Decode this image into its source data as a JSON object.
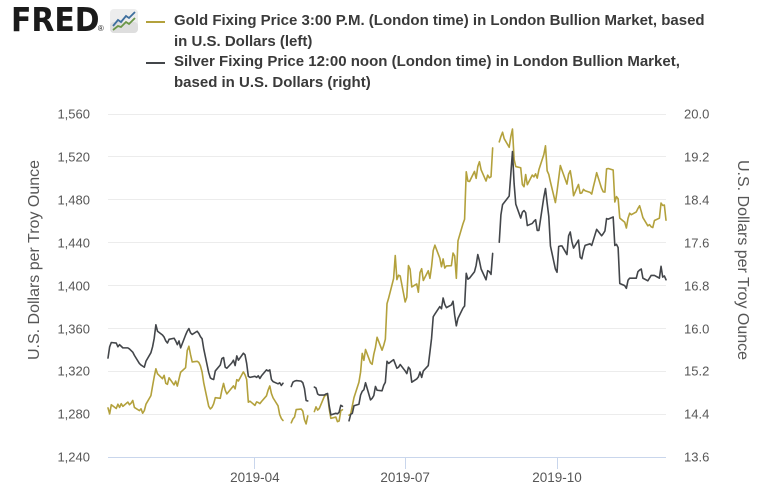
{
  "brand": {
    "logo_text": "FRED",
    "registered_mark": "®",
    "icon_line_top_color": "#3e6f9e",
    "icon_line_bottom_color": "#6a9646"
  },
  "legend": {
    "entries": [
      {
        "series": "gold",
        "color": "#b3a13c",
        "label": "Gold Fixing Price 3:00 P.M. (London time) in London Bullion Market, based in U.S. Dollars (left)",
        "label_line1": "Gold Fixing Price 3:00 P.M. (London time) in London Bullion Market, based",
        "label_line2": "in U.S. Dollars (left)"
      },
      {
        "series": "silver",
        "color": "#43464a",
        "label": "Silver Fixing Price 12:00 noon (London time) in London Bullion Market, based in U.S. Dollars (right)",
        "label_line1": "Silver Fixing Price 12:00 noon (London time) in London Bullion Market,",
        "label_line2": "based in U.S. Dollars (right)"
      }
    ]
  },
  "chart_data": {
    "type": "line",
    "title": "",
    "left_axis": {
      "title": "U.S. Dollars per Troy Ounce",
      "min": 1240,
      "max": 1560,
      "ticks": [
        1240,
        1280,
        1320,
        1360,
        1400,
        1440,
        1480,
        1520,
        1560
      ],
      "tick_labels": [
        "1,240",
        "1,280",
        "1,320",
        "1,360",
        "1,400",
        "1,440",
        "1,480",
        "1,520",
        "1,560"
      ]
    },
    "right_axis": {
      "title": "U.S. Dollars per Troy Ounce",
      "min": 13.6,
      "max": 20.0,
      "ticks": [
        13.6,
        14.4,
        15.2,
        16.0,
        16.8,
        17.6,
        18.4,
        19.2,
        20.0
      ],
      "tick_labels": [
        "13.6",
        "14.4",
        "15.2",
        "16.0",
        "16.8",
        "17.6",
        "18.4",
        "19.2",
        "20.0"
      ]
    },
    "x_axis": {
      "start_date": "2019-01-02",
      "end_date": "2019-12-06",
      "ticks": [
        "2019-04-01",
        "2019-07-01",
        "2019-10-01"
      ],
      "tick_labels": [
        "2019-04",
        "2019-07",
        "2019-10"
      ]
    },
    "grid": true,
    "legend_position": "top",
    "dates": [
      "2019-01-02",
      "2019-01-03",
      "2019-01-04",
      "2019-01-07",
      "2019-01-08",
      "2019-01-09",
      "2019-01-10",
      "2019-01-11",
      "2019-01-14",
      "2019-01-15",
      "2019-01-16",
      "2019-01-17",
      "2019-01-18",
      "2019-01-21",
      "2019-01-22",
      "2019-01-23",
      "2019-01-24",
      "2019-01-25",
      "2019-01-28",
      "2019-01-29",
      "2019-01-30",
      "2019-01-31",
      "2019-02-01",
      "2019-02-04",
      "2019-02-05",
      "2019-02-06",
      "2019-02-07",
      "2019-02-08",
      "2019-02-11",
      "2019-02-12",
      "2019-02-13",
      "2019-02-14",
      "2019-02-15",
      "2019-02-18",
      "2019-02-19",
      "2019-02-20",
      "2019-02-21",
      "2019-02-22",
      "2019-02-25",
      "2019-02-26",
      "2019-02-27",
      "2019-02-28",
      "2019-03-01",
      "2019-03-04",
      "2019-03-05",
      "2019-03-06",
      "2019-03-07",
      "2019-03-08",
      "2019-03-11",
      "2019-03-12",
      "2019-03-13",
      "2019-03-14",
      "2019-03-15",
      "2019-03-18",
      "2019-03-19",
      "2019-03-20",
      "2019-03-21",
      "2019-03-22",
      "2019-03-25",
      "2019-03-26",
      "2019-03-27",
      "2019-03-28",
      "2019-03-29",
      "2019-04-01",
      "2019-04-02",
      "2019-04-03",
      "2019-04-04",
      "2019-04-05",
      "2019-04-08",
      "2019-04-09",
      "2019-04-10",
      "2019-04-11",
      "2019-04-12",
      "2019-04-15",
      "2019-04-16",
      "2019-04-17",
      "2019-04-18",
      "2019-04-19",
      "2019-04-22",
      "2019-04-23",
      "2019-04-24",
      "2019-04-25",
      "2019-04-26",
      "2019-04-29",
      "2019-04-30",
      "2019-05-01",
      "2019-05-02",
      "2019-05-03",
      "2019-05-06",
      "2019-05-07",
      "2019-05-08",
      "2019-05-09",
      "2019-05-10",
      "2019-05-13",
      "2019-05-14",
      "2019-05-15",
      "2019-05-16",
      "2019-05-17",
      "2019-05-20",
      "2019-05-21",
      "2019-05-22",
      "2019-05-23",
      "2019-05-24",
      "2019-05-27",
      "2019-05-28",
      "2019-05-29",
      "2019-05-30",
      "2019-05-31",
      "2019-06-03",
      "2019-06-04",
      "2019-06-05",
      "2019-06-06",
      "2019-06-07",
      "2019-06-10",
      "2019-06-11",
      "2019-06-12",
      "2019-06-13",
      "2019-06-14",
      "2019-06-17",
      "2019-06-18",
      "2019-06-19",
      "2019-06-20",
      "2019-06-21",
      "2019-06-24",
      "2019-06-25",
      "2019-06-26",
      "2019-06-27",
      "2019-06-28",
      "2019-07-01",
      "2019-07-02",
      "2019-07-03",
      "2019-07-04",
      "2019-07-05",
      "2019-07-08",
      "2019-07-09",
      "2019-07-10",
      "2019-07-11",
      "2019-07-12",
      "2019-07-15",
      "2019-07-16",
      "2019-07-17",
      "2019-07-18",
      "2019-07-19",
      "2019-07-22",
      "2019-07-23",
      "2019-07-24",
      "2019-07-25",
      "2019-07-26",
      "2019-07-29",
      "2019-07-30",
      "2019-07-31",
      "2019-08-01",
      "2019-08-02",
      "2019-08-05",
      "2019-08-06",
      "2019-08-07",
      "2019-08-08",
      "2019-08-09",
      "2019-08-12",
      "2019-08-13",
      "2019-08-14",
      "2019-08-15",
      "2019-08-16",
      "2019-08-19",
      "2019-08-20",
      "2019-08-21",
      "2019-08-22",
      "2019-08-23",
      "2019-08-26",
      "2019-08-27",
      "2019-08-28",
      "2019-08-29",
      "2019-08-30",
      "2019-09-02",
      "2019-09-03",
      "2019-09-04",
      "2019-09-05",
      "2019-09-06",
      "2019-09-09",
      "2019-09-10",
      "2019-09-11",
      "2019-09-12",
      "2019-09-13",
      "2019-09-16",
      "2019-09-17",
      "2019-09-18",
      "2019-09-19",
      "2019-09-20",
      "2019-09-23",
      "2019-09-24",
      "2019-09-25",
      "2019-09-26",
      "2019-09-27",
      "2019-09-30",
      "2019-10-01",
      "2019-10-02",
      "2019-10-03",
      "2019-10-04",
      "2019-10-07",
      "2019-10-08",
      "2019-10-09",
      "2019-10-10",
      "2019-10-11",
      "2019-10-14",
      "2019-10-15",
      "2019-10-16",
      "2019-10-17",
      "2019-10-18",
      "2019-10-21",
      "2019-10-22",
      "2019-10-23",
      "2019-10-24",
      "2019-10-25",
      "2019-10-28",
      "2019-10-29",
      "2019-10-30",
      "2019-10-31",
      "2019-11-01",
      "2019-11-04",
      "2019-11-05",
      "2019-11-06",
      "2019-11-07",
      "2019-11-08",
      "2019-11-11",
      "2019-11-12",
      "2019-11-13",
      "2019-11-14",
      "2019-11-15",
      "2019-11-18",
      "2019-11-19",
      "2019-11-20",
      "2019-11-21",
      "2019-11-22",
      "2019-11-25",
      "2019-11-26",
      "2019-11-27",
      "2019-11-28",
      "2019-11-29",
      "2019-12-02",
      "2019-12-03",
      "2019-12-04",
      "2019-12-05",
      "2019-12-06"
    ],
    "series": [
      {
        "name": "Gold Fixing Price 3:00 P.M. (London time) in London Bullion Market, based in U.S. Dollars",
        "axis": "left",
        "color": "#b3a13c",
        "values": [
          1286.0,
          1280.5,
          1289.0,
          1285.5,
          1289.5,
          1286.5,
          1290.0,
          1287.5,
          1291.5,
          1289.0,
          1290.5,
          1293.0,
          1286.5,
          1283.5,
          1285.2,
          1281.1,
          1283.5,
          1289.5,
          1297.5,
          1306.5,
          1315.0,
          1322.5,
          1317.8,
          1313.3,
          1316.4,
          1309.0,
          1308.0,
          1314.1,
          1307.5,
          1311.0,
          1306.4,
          1312.9,
          1319.3,
          1323.5,
          1339.5,
          1343.5,
          1335.7,
          1328.9,
          1329.5,
          1328.4,
          1325.2,
          1319.4,
          1309.3,
          1287.5,
          1285.1,
          1286.6,
          1289.9,
          1295.6,
          1295.0,
          1302.8,
          1308.9,
          1302.5,
          1299.1,
          1304.7,
          1306.6,
          1303.8,
          1312.4,
          1311.1,
          1319.6,
          1316.9,
          1312.5,
          1291.4,
          1292.3,
          1288.4,
          1291.6,
          1291.1,
          1290.0,
          1292.0,
          1297.3,
          1302.7,
          1306.5,
          1299.4,
          1295.4,
          1288.0,
          1279.8,
          1276.2,
          1274.3,
          null,
          null,
          1272.2,
          1275.7,
          1277.6,
          1284.5,
          1285.0,
          1283.0,
          1275.0,
          1271.1,
          1278.6,
          null,
          1282.6,
          1287.0,
          1284.0,
          1285.5,
          1296.6,
          1298.3,
          1297.8,
          1285.2,
          1276.3,
          1277.5,
          1273.2,
          1273.8,
          1283.4,
          1284.3,
          null,
          1279.3,
          1280.3,
          1288.0,
          1295.6,
          1310.0,
          1319.4,
          1336.8,
          1330.4,
          1340.5,
          1328.1,
          1326.7,
          1336.0,
          1342.4,
          1351.9,
          1339.8,
          1344.3,
          1350.1,
          1383.2,
          1388.5,
          1406.6,
          1428.1,
          1405.6,
          1409.7,
          1409.0,
          1384.8,
          1389.2,
          1418.7,
          1415.3,
          1398.8,
          1401.6,
          1393.9,
          1412.2,
          1415.8,
          1404.8,
          1413.9,
          1406.8,
          1417.8,
          1432.7,
          1437.7,
          1425.6,
          1417.6,
          1424.9,
          1416.4,
          1418.4,
          1418.6,
          1430.4,
          1427.6,
          1406.8,
          1441.8,
          1457.6,
          1461.9,
          1506.1,
          1497.4,
          1497.1,
          1506.5,
          1500.0,
          1511.0,
          1515.5,
          1508.0,
          1497.5,
          1503.0,
          1500.5,
          1501.5,
          1528.4,
          null,
          1534.0,
          1539.0,
          1543.0,
          1537.0,
          1529.0,
          1539.0,
          1546.0,
          1517.5,
          1511.0,
          1509.9,
          1494.3,
          1492.2,
          1503.6,
          1494.1,
          1503.1,
          1501.4,
          1504.2,
          1500.2,
          1508.0,
          1522.2,
          1530.4,
          1507.1,
          1503.7,
          1496.7,
          1477.4,
          1488.0,
          1500.0,
          1512.0,
          1507.6,
          1494.6,
          1503.9,
          1507.1,
          1498.0,
          1483.8,
          1494.3,
          1486.1,
          1486.4,
          1489.8,
          1488.5,
          1486.9,
          1485.4,
          1492.1,
          1498.3,
          1505.3,
          1490.6,
          1487.4,
          1487.2,
          1508.8,
          1509.2,
          1507.8,
          1478.0,
          1483.0,
          1481.0,
          1462.9,
          1459.1,
          1453.7,
          1462.7,
          1467.5,
          1466.1,
          1468.7,
          1471.9,
          1474.5,
          1469.3,
          1463.5,
          1455.8,
          1456.9,
          1454.9,
          1454.2,
          1460.7,
          1462.9,
          1477.0,
          1474.8,
          1475.1,
          1461.0
        ]
      },
      {
        "name": "Silver Fixing Price 12:00 noon (London time) in London Bullion Market, based in U.S. Dollars",
        "axis": "right",
        "color": "#43464a",
        "values": [
          15.45,
          15.66,
          15.74,
          15.73,
          15.66,
          15.7,
          15.67,
          15.64,
          15.64,
          15.62,
          15.59,
          15.56,
          15.5,
          15.35,
          15.32,
          15.3,
          15.28,
          15.39,
          15.55,
          15.66,
          15.82,
          16.07,
          15.95,
          15.88,
          15.84,
          15.77,
          15.73,
          15.8,
          15.82,
          15.77,
          15.7,
          15.77,
          15.64,
          15.88,
          15.95,
          16.0,
          15.92,
          15.89,
          15.95,
          15.91,
          15.85,
          15.81,
          15.62,
          15.18,
          15.08,
          15.06,
          15.05,
          15.21,
          15.32,
          15.44,
          15.46,
          15.28,
          15.26,
          15.36,
          15.41,
          15.31,
          15.49,
          15.41,
          15.54,
          15.51,
          15.35,
          15.11,
          15.09,
          15.11,
          15.09,
          15.12,
          15.07,
          15.12,
          15.23,
          15.21,
          15.23,
          15.05,
          15.01,
          14.97,
          14.99,
          14.94,
          14.98,
          null,
          null,
          14.92,
          15.0,
          15.02,
          15.03,
          15.02,
          14.99,
          14.88,
          14.66,
          14.65,
          null,
          14.91,
          14.89,
          14.78,
          14.76,
          14.76,
          14.78,
          14.79,
          14.56,
          14.39,
          14.42,
          14.41,
          14.44,
          14.57,
          14.55,
          null,
          14.28,
          14.4,
          14.42,
          14.56,
          14.59,
          14.76,
          14.83,
          14.86,
          14.99,
          14.67,
          14.7,
          14.75,
          14.92,
          14.85,
          14.84,
          14.94,
          15.0,
          15.39,
          15.35,
          15.42,
          15.34,
          15.26,
          15.28,
          15.33,
          15.21,
          15.16,
          15.28,
          15.24,
          15.0,
          15.06,
          15.1,
          15.19,
          15.09,
          15.21,
          15.31,
          15.56,
          15.82,
          16.22,
          16.27,
          16.41,
          16.37,
          16.57,
          16.45,
          16.39,
          16.44,
          16.51,
          16.25,
          16.05,
          16.19,
          16.38,
          16.42,
          17.03,
          16.92,
          16.94,
          17.06,
          17.18,
          17.38,
          17.26,
          17.11,
          16.91,
          17.08,
          17.06,
          17.01,
          17.4,
          null,
          17.61,
          18.12,
          18.31,
          18.35,
          18.47,
          18.88,
          19.3,
          18.7,
          18.32,
          18.06,
          18.17,
          18.2,
          18.16,
          17.92,
          17.96,
          18.0,
          18.03,
          17.83,
          17.83,
          18.45,
          18.61,
          18.34,
          18.09,
          17.54,
          17.11,
          17.05,
          17.53,
          17.54,
          17.54,
          17.38,
          17.73,
          17.8,
          17.62,
          17.5,
          17.65,
          17.33,
          17.3,
          17.45,
          17.55,
          17.58,
          17.55,
          17.65,
          17.75,
          17.85,
          17.73,
          17.77,
          17.82,
          18.05,
          18.04,
          18.08,
          17.55,
          17.57,
          17.51,
          16.84,
          16.8,
          16.75,
          16.9,
          16.94,
          16.94,
          16.94,
          17.06,
          17.09,
          17.11,
          16.94,
          16.89,
          16.94,
          16.99,
          16.99,
          16.99,
          16.94,
          17.16,
          16.96,
          16.98,
          16.91
        ]
      }
    ]
  },
  "colors": {
    "background": "#ffffff",
    "gridline": "#ececec",
    "axis_line": "#c9d6ec",
    "tick_text": "#575757",
    "legend_text": "#3a3a3a",
    "logo_text": "#1a1a1a"
  }
}
